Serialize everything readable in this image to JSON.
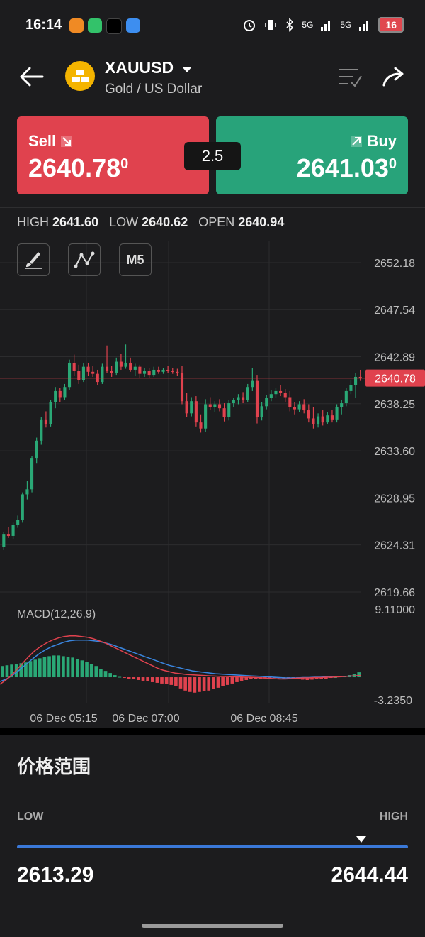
{
  "status_bar": {
    "time": "16:14",
    "network_1": "5G",
    "network_2": "5G",
    "battery": "16"
  },
  "header": {
    "symbol": "XAUUSD",
    "name": "Gold / US Dollar"
  },
  "trade": {
    "sell_label": "Sell",
    "sell_price_main": "2640.78",
    "sell_price_sup": "0",
    "buy_label": "Buy",
    "buy_price_main": "2641.03",
    "buy_price_sup": "0",
    "spread": "2.5"
  },
  "stats": {
    "high_label": "HIGH",
    "high": "2641.60",
    "low_label": "LOW",
    "low": "2640.62",
    "open_label": "OPEN",
    "open": "2640.94"
  },
  "tools": {
    "timeframe": "M5"
  },
  "chart_data": {
    "type": "candlestick",
    "y_ticks": [
      "2652.18",
      "2647.54",
      "2642.89",
      "2638.25",
      "2633.60",
      "2628.95",
      "2624.31",
      "2619.66"
    ],
    "ylim": [
      2619.66,
      2652.18
    ],
    "current_price": "2640.78",
    "x_ticks": [
      "06 Dec 05:15",
      "06 Dec 07:00",
      "06 Dec 08:45"
    ],
    "candles": [
      [
        2624.1,
        2625.6,
        2623.8,
        2625.4
      ],
      [
        2625.4,
        2626.1,
        2625.0,
        2625.2
      ],
      [
        2625.2,
        2626.5,
        2624.9,
        2626.3
      ],
      [
        2626.3,
        2627.2,
        2626.0,
        2626.8
      ],
      [
        2626.8,
        2629.5,
        2626.5,
        2629.3
      ],
      [
        2629.3,
        2630.6,
        2628.8,
        2629.8
      ],
      [
        2629.8,
        2633.1,
        2629.5,
        2632.9
      ],
      [
        2632.9,
        2634.9,
        2632.4,
        2634.6
      ],
      [
        2634.6,
        2636.9,
        2634.2,
        2636.7
      ],
      [
        2636.7,
        2637.5,
        2635.9,
        2636.2
      ],
      [
        2636.2,
        2638.6,
        2636.0,
        2638.4
      ],
      [
        2638.4,
        2639.9,
        2637.8,
        2639.5
      ],
      [
        2639.5,
        2639.8,
        2638.4,
        2638.9
      ],
      [
        2638.9,
        2640.2,
        2638.6,
        2639.9
      ],
      [
        2639.9,
        2642.6,
        2639.6,
        2642.3
      ],
      [
        2642.3,
        2643.1,
        2641.0,
        2641.5
      ],
      [
        2641.5,
        2642.1,
        2640.2,
        2640.6
      ],
      [
        2640.6,
        2642.3,
        2640.4,
        2641.9
      ],
      [
        2641.9,
        2642.3,
        2641.0,
        2641.4
      ],
      [
        2641.4,
        2642.0,
        2640.9,
        2641.2
      ],
      [
        2641.2,
        2641.6,
        2640.1,
        2640.4
      ],
      [
        2640.4,
        2642.2,
        2640.2,
        2641.9
      ],
      [
        2641.9,
        2644.0,
        2641.3,
        2641.5
      ],
      [
        2641.5,
        2642.0,
        2640.9,
        2641.3
      ],
      [
        2641.3,
        2642.8,
        2641.1,
        2642.4
      ],
      [
        2642.4,
        2643.2,
        2641.6,
        2641.9
      ],
      [
        2641.9,
        2644.1,
        2641.7,
        2642.3
      ],
      [
        2642.3,
        2642.8,
        2641.4,
        2641.6
      ],
      [
        2641.6,
        2642.2,
        2641.0,
        2641.9
      ],
      [
        2641.9,
        2642.1,
        2640.8,
        2641.2
      ],
      [
        2641.2,
        2641.8,
        2640.9,
        2641.5
      ],
      [
        2641.5,
        2641.8,
        2640.8,
        2641.1
      ],
      [
        2641.1,
        2641.9,
        2640.9,
        2641.6
      ],
      [
        2641.6,
        2641.9,
        2641.2,
        2641.4
      ],
      [
        2641.4,
        2641.8,
        2641.2,
        2641.6
      ],
      [
        2641.6,
        2642.0,
        2641.3,
        2641.5
      ],
      [
        2641.5,
        2641.8,
        2641.2,
        2641.4
      ],
      [
        2641.4,
        2641.7,
        2641.0,
        2641.3
      ],
      [
        2641.3,
        2642.0,
        2638.2,
        2638.5
      ],
      [
        2638.5,
        2639.3,
        2636.9,
        2637.3
      ],
      [
        2637.3,
        2638.9,
        2637.0,
        2638.5
      ],
      [
        2638.5,
        2639.0,
        2636.0,
        2636.4
      ],
      [
        2636.4,
        2637.2,
        2635.4,
        2635.8
      ],
      [
        2635.8,
        2638.7,
        2635.5,
        2638.2
      ],
      [
        2638.2,
        2638.9,
        2637.6,
        2637.9
      ],
      [
        2637.9,
        2638.5,
        2637.4,
        2638.2
      ],
      [
        2638.2,
        2638.7,
        2637.5,
        2637.8
      ],
      [
        2637.8,
        2638.3,
        2636.5,
        2636.9
      ],
      [
        2636.9,
        2638.6,
        2636.6,
        2638.3
      ],
      [
        2638.3,
        2638.8,
        2637.9,
        2638.6
      ],
      [
        2638.6,
        2639.2,
        2638.2,
        2638.9
      ],
      [
        2638.9,
        2639.4,
        2638.3,
        2638.6
      ],
      [
        2638.6,
        2640.2,
        2638.4,
        2639.9
      ],
      [
        2639.9,
        2641.8,
        2639.5,
        2640.5
      ],
      [
        2640.5,
        2641.1,
        2636.3,
        2636.9
      ],
      [
        2636.9,
        2638.4,
        2636.6,
        2638.0
      ],
      [
        2638.0,
        2639.1,
        2637.7,
        2638.8
      ],
      [
        2638.8,
        2639.6,
        2638.5,
        2639.2
      ],
      [
        2639.2,
        2639.8,
        2638.8,
        2639.5
      ],
      [
        2639.5,
        2640.1,
        2639.0,
        2639.3
      ],
      [
        2639.3,
        2639.7,
        2638.4,
        2638.9
      ],
      [
        2638.9,
        2639.5,
        2637.5,
        2637.9
      ],
      [
        2637.9,
        2638.4,
        2637.2,
        2637.7
      ],
      [
        2637.7,
        2638.5,
        2637.4,
        2638.2
      ],
      [
        2638.2,
        2638.7,
        2637.3,
        2637.6
      ],
      [
        2637.6,
        2638.2,
        2636.4,
        2636.8
      ],
      [
        2636.8,
        2637.9,
        2635.8,
        2636.2
      ],
      [
        2636.2,
        2637.3,
        2635.9,
        2637.0
      ],
      [
        2637.0,
        2637.6,
        2636.1,
        2636.4
      ],
      [
        2636.4,
        2637.4,
        2636.2,
        2637.1
      ],
      [
        2637.1,
        2637.6,
        2636.4,
        2636.7
      ],
      [
        2636.7,
        2638.2,
        2636.4,
        2637.9
      ],
      [
        2637.9,
        2638.6,
        2637.2,
        2638.3
      ],
      [
        2638.3,
        2639.8,
        2638.0,
        2639.5
      ],
      [
        2639.5,
        2640.6,
        2639.2,
        2640.1
      ],
      [
        2640.1,
        2641.3,
        2638.8,
        2640.9
      ],
      [
        2640.9,
        2641.6,
        2640.5,
        2640.8
      ]
    ],
    "macd": {
      "label": "MACD(12,26,9)",
      "top_label": "9.11000",
      "bottom_label": "-3.2350",
      "ylim": [
        -3.235,
        9.11
      ],
      "histogram": [
        1.6,
        1.7,
        1.8,
        1.9,
        2.0,
        2.1,
        2.3,
        2.5,
        2.7,
        2.9,
        3.0,
        3.1,
        3.1,
        3.0,
        2.9,
        2.8,
        2.6,
        2.4,
        2.2,
        1.9,
        1.6,
        1.2,
        0.9,
        0.6,
        0.3,
        0.05,
        -0.1,
        -0.2,
        -0.3,
        -0.4,
        -0.5,
        -0.6,
        -0.7,
        -0.8,
        -0.9,
        -1.0,
        -1.1,
        -1.3,
        -1.6,
        -1.9,
        -2.1,
        -2.2,
        -2.1,
        -2.0,
        -1.9,
        -1.7,
        -1.5,
        -1.3,
        -1.1,
        -0.9,
        -0.7,
        -0.5,
        -0.4,
        -0.3,
        -0.2,
        -0.2,
        -0.1,
        -0.1,
        -0.1,
        -0.15,
        -0.2,
        -0.2,
        -0.25,
        -0.3,
        -0.35,
        -0.4,
        -0.35,
        -0.3,
        -0.25,
        -0.2,
        -0.1,
        0.0,
        0.1,
        0.2,
        0.3,
        0.5,
        0.7
      ],
      "macd_line": [
        -1.0,
        -0.4,
        0.3,
        1.2,
        2.1,
        3.0,
        3.8,
        4.4,
        4.9,
        5.3,
        5.6,
        5.8,
        5.9,
        5.9,
        5.8,
        5.7,
        5.5,
        5.2,
        4.9,
        4.5,
        4.1,
        3.7,
        3.3,
        2.9,
        2.5,
        2.1,
        1.7,
        1.3,
        1.0,
        0.8,
        0.6,
        0.5,
        0.4,
        0.35,
        0.3,
        0.25,
        0.2,
        0.15,
        0.1,
        0.1,
        0.05,
        0.05,
        0.0,
        0.0,
        -0.05,
        -0.1,
        -0.15,
        -0.2,
        -0.25,
        -0.25,
        -0.2,
        -0.15,
        -0.1,
        -0.1,
        -0.05,
        -0.05,
        0.0,
        0.0,
        0.05,
        0.1,
        0.15,
        0.2,
        0.25
      ],
      "signal_line": [
        -0.6,
        -0.3,
        0.2,
        0.8,
        1.5,
        2.2,
        2.9,
        3.5,
        4.0,
        4.4,
        4.7,
        5.0,
        5.2,
        5.3,
        5.3,
        5.3,
        5.2,
        5.1,
        4.9,
        4.7,
        4.4,
        4.1,
        3.8,
        3.5,
        3.2,
        2.9,
        2.6,
        2.3,
        2.0,
        1.7,
        1.5,
        1.3,
        1.1,
        0.9,
        0.8,
        0.7,
        0.6,
        0.5,
        0.45,
        0.4,
        0.35,
        0.3,
        0.25,
        0.2,
        0.15,
        0.1,
        0.05,
        0.0,
        -0.05,
        -0.1,
        -0.1,
        -0.1,
        -0.05,
        -0.05,
        0.0,
        0.0,
        0.05,
        0.05,
        0.1,
        0.1,
        0.15,
        0.2,
        0.25
      ]
    }
  },
  "price_range": {
    "title": "价格范围",
    "low_label": "LOW",
    "high_label": "HIGH",
    "low": "2613.29",
    "high": "2644.44",
    "current_position": 0.98
  },
  "colors": {
    "up": "#2aa876",
    "down": "#e0424e",
    "macd_line": "#e0424e",
    "signal_line": "#3a86e0",
    "accent": "#3a78d8"
  }
}
